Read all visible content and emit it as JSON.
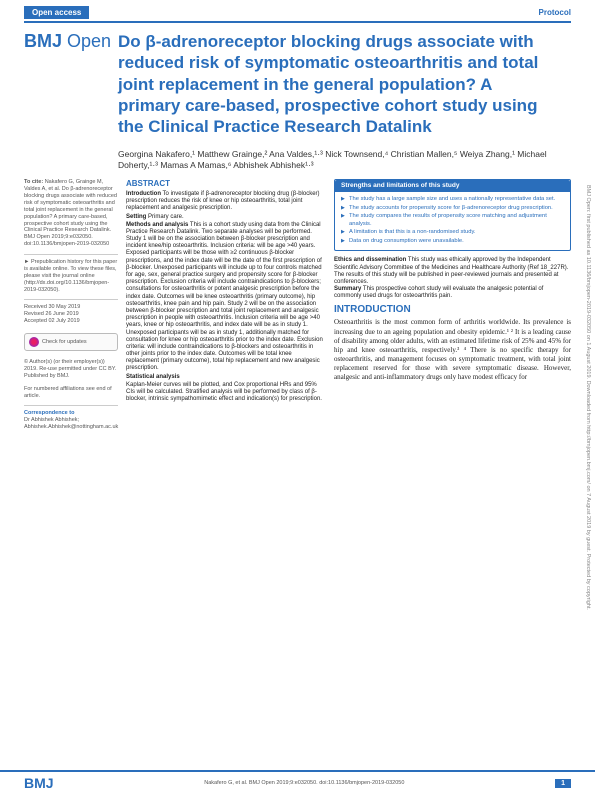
{
  "header": {
    "open_access": "Open access",
    "protocol": "Protocol",
    "journal_bmj": "BMJ",
    "journal_open": "Open",
    "title": "Do β-adrenoreceptor blocking drugs associate with reduced risk of symptomatic osteoarthritis and total joint replacement in the general population? A primary care-based, prospective cohort study using the Clinical Practice Research Datalink"
  },
  "authors": "Georgina Nakafero,¹ Matthew Grainge,² Ana Valdes,¹·³ Nick Townsend,⁴ Christian Mallen,⁵ Weiya Zhang,¹ Michael Doherty,¹·³ Mamas A Mamas,⁶ Abhishek Abhishek¹·³",
  "left": {
    "cite_label": "To cite:",
    "cite_text": "Nakafero G, Grainge M, Valdes A, et al. Do β-adrenoreceptor blocking drugs associate with reduced risk of symptomatic osteoarthritis and total joint replacement in the general population? A primary care-based, prospective cohort study using the Clinical Practice Research Datalink. BMJ Open 2019;9:e032050. doi:10.1136/bmjopen-2019-032050",
    "prepub": "► Prepublication history for this paper is available online. To view these files, please visit the journal online (http://dx.doi.org/10.1136/bmjopen-2019-032050).",
    "dates": "Received 30 May 2019\nRevised 26 June 2019\nAccepted 02 July 2019",
    "check": "Check for updates",
    "license": "© Author(s) (or their employer(s)) 2019. Re-use permitted under CC BY. Published by BMJ.",
    "affil_note": "For numbered affiliations see end of article.",
    "corr_head": "Correspondence to",
    "corr_text": "Dr Abhishek Abhishek;\nAbhishek.Abhishek@nottingham.ac.uk"
  },
  "abstract": {
    "heading": "ABSTRACT",
    "intro_label": "Introduction",
    "intro": " To investigate if β-adrenoreceptor blocking drug (β-blocker) prescription reduces the risk of knee or hip osteoarthritis, total joint replacement and analgesic prescription.",
    "setting_label": "Setting",
    "setting": " Primary care.",
    "methods_label": "Methods and analysis",
    "methods": " This is a cohort study using data from the Clinical Practice Research Datalink. Two separate analyses will be performed. Study 1 will be on the association between β-blocker prescription and incident knee/hip osteoarthritis. Inclusion criteria: will be age >40 years. Exposed participants will be those with ≥2 continuous β-blocker prescriptions, and the index date will be the date of the first prescription of β-blocker. Unexposed participants will include up to four controls matched for age, sex, general practice surgery and propensity score for β-blocker prescription. Exclusion criteria will include contraindications to β-blockers; consultations for osteoarthritis or potent analgesic prescription before the index date. Outcomes will be knee osteoarthritis (primary outcome), hip osteoarthritis, knee pain and hip pain. Study 2 will be on the association between β-blocker prescription and total joint replacement and analgesic prescription in people with osteoarthritis. Inclusion criteria will be age >40 years, knee or hip osteoarthritis, and index date will be as in study 1. Unexposed participants will be as in study 1, additionally matched for consultation for knee or hip osteoarthritis prior to the index date. Exclusion criteria: will include contraindications to β-blockers and osteoarthritis in other joints prior to the index date. Outcomes will be total knee replacement (primary outcome), total hip replacement and new analgesic prescription.",
    "stats_label": "Statistical analysis",
    "stats": "Kaplan-Meier curves will be plotted, and Cox proportional HRs and 95% CIs will be calculated. Stratified analysis will be performed by class of β-blocker, intrinsic sympathomimetic effect and indication(s) for prescription."
  },
  "box": {
    "title": "Strengths and limitations of this study",
    "items": [
      "The study has a large sample size and uses a nationally representative data set.",
      "The study accounts for propensity score for β-adrenoreceptor drug prescription.",
      "The study compares the results of propensity score matching and adjustment analysis.",
      "A limitation is that this is a non-randomised study.",
      "Data on drug consumption were unavailable."
    ]
  },
  "ethics": {
    "label": "Ethics and dissemination",
    "text": " This study was ethically approved by the Independent Scientific Advisory Committee of the Medicines and Healthcare Authority (Ref 18_227R). The results of this study will be published in peer-reviewed journals and presented at conferences.",
    "summary_label": "Summary",
    "summary": " This prospective cohort study will evaluate the analgesic potential of commonly used drugs for osteoarthritis pain."
  },
  "intro_section": {
    "heading": "INTRODUCTION",
    "text": "Osteoarthritis is the most common form of arthritis worldwide. Its prevalence is increasing due to an ageing population and obesity epidemic.¹ ² It is a leading cause of disability among older adults, with an estimated lifetime risk of 25% and 45% for hip and knee osteoarthritis, respectively.³ ⁴ There is no specific therapy for osteoarthritis, and management focuses on symptomatic treatment, with total joint replacement reserved for those with severe symptomatic disease. However, analgesic and anti-inflammatory drugs only have modest efficacy for"
  },
  "footer": {
    "bmj": "BMJ",
    "citation": "Nakafero G, et al. BMJ Open 2019;9:e032050. doi:10.1136/bmjopen-2019-032050",
    "page": "1"
  },
  "side": "BMJ Open: first published as 10.1136/bmjopen-2019-032050 on 1 August 2019. Downloaded from http://bmjopen.bmj.com/ on 7 August 2019 by guest. Protected by copyright."
}
